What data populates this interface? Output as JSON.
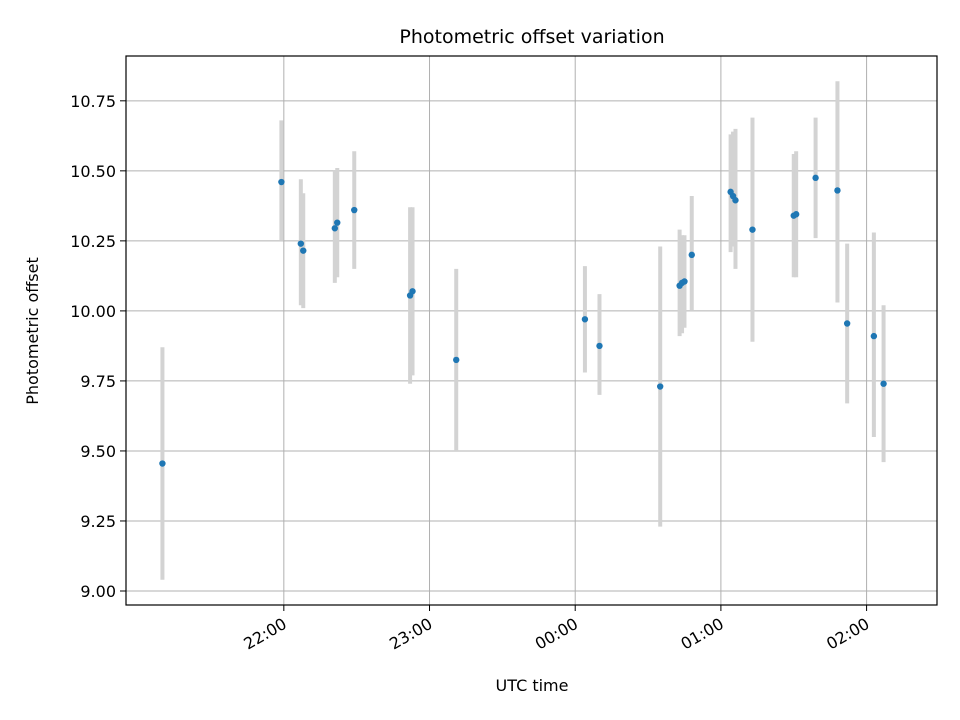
{
  "chart_data": {
    "type": "scatter",
    "title": "Photometric offset variation",
    "xlabel": "UTC time",
    "ylabel": "Photometric offset",
    "x_tick_labels": [
      "22:00",
      "23:00",
      "00:00",
      "01:00",
      "02:00"
    ],
    "x_tick_minutes": [
      1320,
      1380,
      1440,
      1500,
      1560
    ],
    "y_tick_labels": [
      "9.00",
      "9.25",
      "9.50",
      "9.75",
      "10.00",
      "10.25",
      "10.50",
      "10.75"
    ],
    "y_ticks": [
      9.0,
      9.25,
      9.5,
      9.75,
      10.0,
      10.25,
      10.5,
      10.75
    ],
    "xlim_minutes": [
      1255,
      1589
    ],
    "ylim": [
      8.95,
      10.91
    ],
    "grid": true,
    "point_color": "#1f77b4",
    "errorbar_color": "#d3d3d3",
    "points": [
      {
        "t": 1270,
        "y": 9.455,
        "lo": 9.04,
        "hi": 9.87
      },
      {
        "t": 1319,
        "y": 10.46,
        "lo": 10.25,
        "hi": 10.68
      },
      {
        "t": 1327,
        "y": 10.24,
        "lo": 10.02,
        "hi": 10.47
      },
      {
        "t": 1328,
        "y": 10.215,
        "lo": 10.01,
        "hi": 10.42
      },
      {
        "t": 1341,
        "y": 10.295,
        "lo": 10.1,
        "hi": 10.5
      },
      {
        "t": 1342,
        "y": 10.315,
        "lo": 10.12,
        "hi": 10.51
      },
      {
        "t": 1349,
        "y": 10.36,
        "lo": 10.15,
        "hi": 10.57
      },
      {
        "t": 1372,
        "y": 10.055,
        "lo": 9.74,
        "hi": 10.37
      },
      {
        "t": 1373,
        "y": 10.07,
        "lo": 9.77,
        "hi": 10.37
      },
      {
        "t": 1391,
        "y": 9.825,
        "lo": 9.5,
        "hi": 10.15
      },
      {
        "t": 1444,
        "y": 9.97,
        "lo": 9.78,
        "hi": 10.16
      },
      {
        "t": 1450,
        "y": 9.875,
        "lo": 9.7,
        "hi": 10.06
      },
      {
        "t": 1475,
        "y": 9.73,
        "lo": 9.23,
        "hi": 10.23
      },
      {
        "t": 1483,
        "y": 10.09,
        "lo": 9.91,
        "hi": 10.29
      },
      {
        "t": 1484,
        "y": 10.1,
        "lo": 9.92,
        "hi": 10.27
      },
      {
        "t": 1485,
        "y": 10.105,
        "lo": 9.94,
        "hi": 10.27
      },
      {
        "t": 1488,
        "y": 10.2,
        "lo": 10.0,
        "hi": 10.41
      },
      {
        "t": 1504,
        "y": 10.425,
        "lo": 10.21,
        "hi": 10.63
      },
      {
        "t": 1505,
        "y": 10.41,
        "lo": 10.23,
        "hi": 10.64
      },
      {
        "t": 1506,
        "y": 10.395,
        "lo": 10.15,
        "hi": 10.65
      },
      {
        "t": 1513,
        "y": 10.29,
        "lo": 9.89,
        "hi": 10.69
      },
      {
        "t": 1530,
        "y": 10.34,
        "lo": 10.12,
        "hi": 10.56
      },
      {
        "t": 1531,
        "y": 10.345,
        "lo": 10.12,
        "hi": 10.57
      },
      {
        "t": 1539,
        "y": 10.475,
        "lo": 10.26,
        "hi": 10.69
      },
      {
        "t": 1548,
        "y": 10.43,
        "lo": 10.03,
        "hi": 10.82
      },
      {
        "t": 1552,
        "y": 9.955,
        "lo": 9.67,
        "hi": 10.24
      },
      {
        "t": 1563,
        "y": 9.91,
        "lo": 9.55,
        "hi": 10.28
      },
      {
        "t": 1567,
        "y": 9.74,
        "lo": 9.46,
        "hi": 10.02
      }
    ]
  }
}
